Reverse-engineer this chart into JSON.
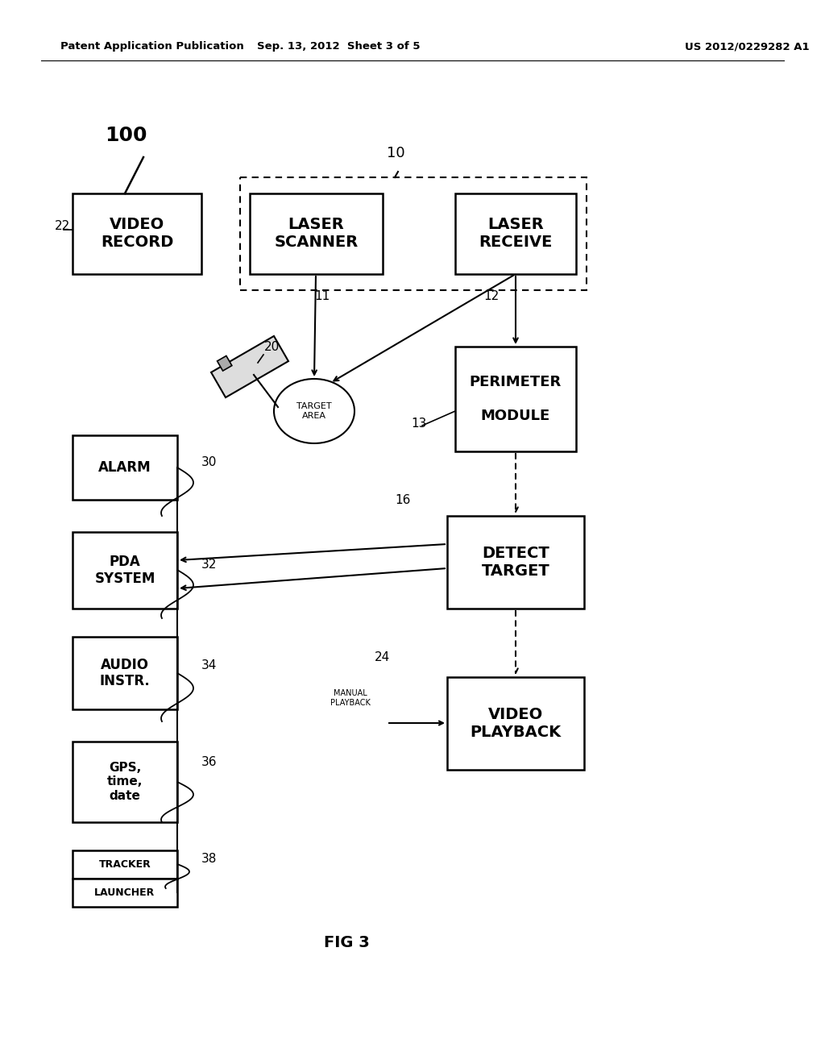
{
  "bg_color": "#ffffff",
  "header_left": "Patent Application Publication",
  "header_mid": "Sep. 13, 2012  Sheet 3 of 5",
  "header_right": "US 2012/0229282 A1",
  "fig_label": "FIG 3"
}
